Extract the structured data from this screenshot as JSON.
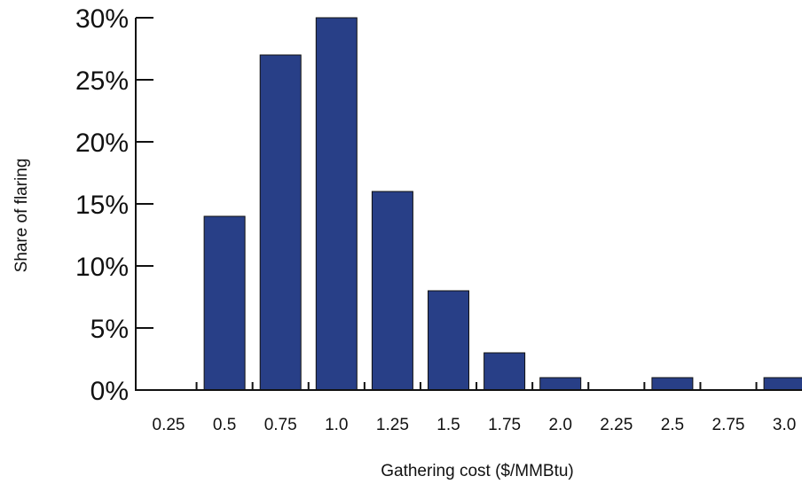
{
  "chart_data": {
    "type": "bar",
    "title": "",
    "xlabel": "Gathering cost ($/MMBtu)",
    "ylabel": "Share of flaring",
    "categories": [
      "0.25",
      "0.5",
      "0.75",
      "1.0",
      "1.25",
      "1.5",
      "1.75",
      "2.0",
      "2.25",
      "2.5",
      "2.75",
      "3.0"
    ],
    "values": [
      0,
      14,
      27,
      30,
      16,
      8,
      3,
      1,
      0,
      1,
      0,
      1
    ],
    "yticks": [
      0,
      5,
      10,
      15,
      20,
      25,
      30
    ],
    "ytick_labels": [
      "0%",
      "5%",
      "10%",
      "15%",
      "20%",
      "25%",
      "30%"
    ],
    "ylim": [
      0,
      30
    ],
    "grid": false,
    "legend": "none",
    "bar_color": "#283F87",
    "bar_edge_color": "#111111"
  }
}
